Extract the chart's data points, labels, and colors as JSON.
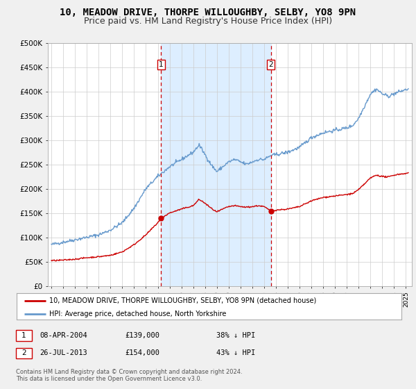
{
  "title": "10, MEADOW DRIVE, THORPE WILLOUGHBY, SELBY, YO8 9PN",
  "subtitle": "Price paid vs. HM Land Registry's House Price Index (HPI)",
  "ylim": [
    0,
    500000
  ],
  "yticks": [
    0,
    50000,
    100000,
    150000,
    200000,
    250000,
    300000,
    350000,
    400000,
    450000,
    500000
  ],
  "ytick_labels": [
    "£0",
    "£50K",
    "£100K",
    "£150K",
    "£200K",
    "£250K",
    "£300K",
    "£350K",
    "£400K",
    "£450K",
    "£500K"
  ],
  "xlim_start": 1994.7,
  "xlim_end": 2025.5,
  "xticks": [
    1995,
    1996,
    1997,
    1998,
    1999,
    2000,
    2001,
    2002,
    2003,
    2004,
    2005,
    2006,
    2007,
    2008,
    2009,
    2010,
    2011,
    2012,
    2013,
    2014,
    2015,
    2016,
    2017,
    2018,
    2019,
    2020,
    2021,
    2022,
    2023,
    2024,
    2025
  ],
  "bg_color": "#f0f0f0",
  "plot_bg_color": "#ffffff",
  "grid_color": "#cccccc",
  "sale1_date": 2004.274,
  "sale1_price": 139000,
  "sale1_label": "1",
  "sale2_date": 2013.565,
  "sale2_price": 154000,
  "sale2_label": "2",
  "red_line_color": "#cc0000",
  "blue_line_color": "#6699cc",
  "shading_color": "#ddeeff",
  "legend_label_red": "10, MEADOW DRIVE, THORPE WILLOUGHBY, SELBY, YO8 9PN (detached house)",
  "legend_label_blue": "HPI: Average price, detached house, North Yorkshire",
  "annotation1_date": "08-APR-2004",
  "annotation1_price": "£139,000",
  "annotation1_pct": "38% ↓ HPI",
  "annotation2_date": "26-JUL-2013",
  "annotation2_price": "£154,000",
  "annotation2_pct": "43% ↓ HPI",
  "footer": "Contains HM Land Registry data © Crown copyright and database right 2024.\nThis data is licensed under the Open Government Licence v3.0.",
  "title_fontsize": 10,
  "subtitle_fontsize": 9
}
